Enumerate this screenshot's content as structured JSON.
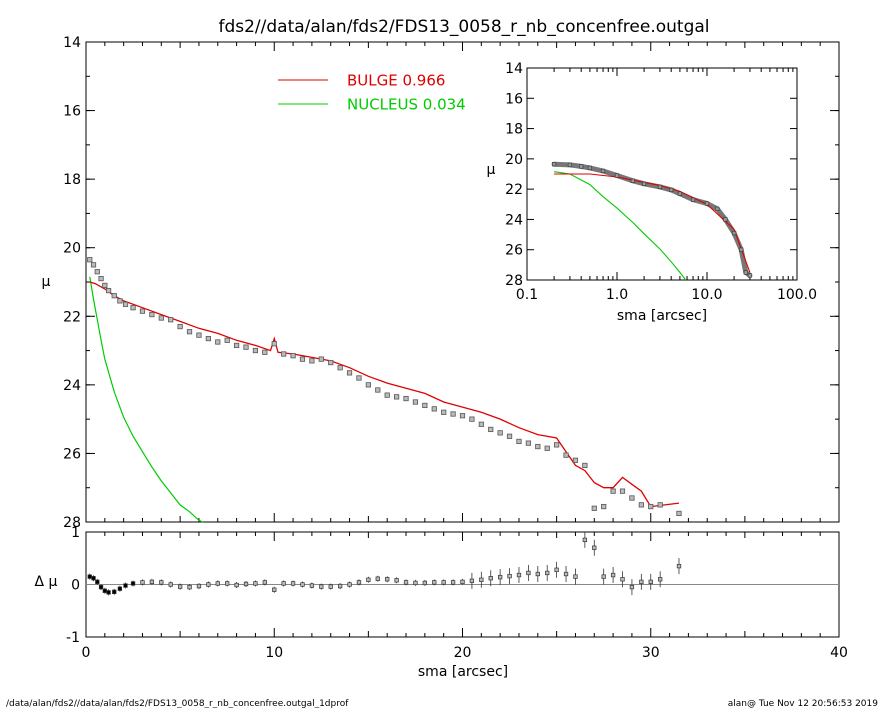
{
  "title": "fds2//data/alan/fds2/FDS13_0058_r_nb_concenfree.outgal",
  "footer_left": "/data/alan/fds2//data/alan/fds2/FDS13_0058_r_nb_concenfree.outgal_1dprof",
  "footer_right": "alan@  Tue Nov 12 20:56:53 2019",
  "colors": {
    "bulge": "#e00000",
    "nucleus": "#00cc00",
    "data": "#555555",
    "residual_zero": "#888888"
  },
  "chart_data": [
    {
      "type": "scatter",
      "panel": "main profile",
      "xlabel": "sma [arcsec]",
      "ylabel": "μ",
      "xlim": [
        0,
        40
      ],
      "ylim": [
        28,
        14
      ],
      "yticks": [
        14,
        16,
        18,
        20,
        22,
        24,
        26,
        28
      ],
      "xticks": [
        0,
        10,
        20,
        30,
        40
      ],
      "legend": [
        {
          "name": "BULGE",
          "value": "0.966",
          "color": "#e00000"
        },
        {
          "name": "NUCLEUS",
          "value": "0.034",
          "color": "#00cc00"
        }
      ],
      "observed": {
        "x": [
          0.2,
          0.4,
          0.6,
          0.8,
          1.0,
          1.2,
          1.5,
          1.8,
          2.1,
          2.5,
          3.0,
          3.5,
          4.0,
          4.5,
          5.0,
          5.5,
          6.0,
          6.5,
          7.0,
          7.5,
          8.0,
          8.5,
          9.0,
          9.5,
          10.0,
          10.5,
          11.0,
          11.5,
          12.0,
          12.5,
          13.0,
          13.5,
          14.0,
          14.5,
          15.0,
          15.5,
          16.0,
          16.5,
          17.0,
          17.5,
          18.0,
          18.5,
          19.0,
          19.5,
          20.0,
          20.5,
          21.0,
          21.5,
          22.0,
          22.5,
          23.0,
          23.5,
          24.0,
          24.5,
          25.0,
          25.5,
          26.0,
          26.5,
          27.0,
          27.5,
          28.0,
          28.5,
          29.0,
          29.5,
          30.0,
          30.5,
          31.5
        ],
        "y": [
          20.35,
          20.5,
          20.7,
          20.9,
          21.1,
          21.25,
          21.4,
          21.55,
          21.65,
          21.75,
          21.85,
          21.95,
          22.05,
          22.1,
          22.3,
          22.45,
          22.55,
          22.65,
          22.75,
          22.7,
          22.85,
          22.9,
          23.0,
          23.05,
          22.8,
          23.1,
          23.15,
          23.25,
          23.3,
          23.25,
          23.35,
          23.5,
          23.65,
          23.8,
          24.0,
          24.15,
          24.3,
          24.35,
          24.4,
          24.5,
          24.6,
          24.7,
          24.8,
          24.85,
          24.9,
          25.0,
          25.15,
          25.3,
          25.4,
          25.5,
          25.65,
          25.7,
          25.8,
          25.85,
          25.75,
          26.05,
          26.2,
          26.35,
          27.6,
          27.55,
          27.1,
          27.1,
          27.3,
          27.5,
          27.55,
          27.5,
          27.75
        ]
      },
      "bulge_model": {
        "x": [
          0.2,
          0.5,
          1.0,
          1.5,
          2.0,
          3.0,
          4.0,
          5.0,
          6.0,
          7.0,
          8.0,
          9.0,
          9.8,
          10.0,
          10.2,
          11.0,
          12.0,
          13.0,
          14.0,
          15.0,
          16.0,
          17.0,
          18.0,
          19.0,
          20.0,
          21.0,
          22.0,
          23.0,
          24.0,
          25.0,
          25.5,
          26.0,
          26.5,
          27.0,
          27.5,
          28.0,
          28.5,
          29.0,
          29.5,
          30.0,
          31.5
        ],
        "y": [
          21.0,
          21.05,
          21.2,
          21.4,
          21.55,
          21.75,
          21.95,
          22.15,
          22.35,
          22.5,
          22.7,
          22.85,
          23.0,
          22.65,
          23.05,
          23.1,
          23.2,
          23.3,
          23.5,
          23.75,
          23.95,
          24.1,
          24.25,
          24.5,
          24.65,
          24.8,
          25.0,
          25.25,
          25.45,
          25.55,
          25.95,
          26.35,
          26.5,
          26.85,
          27.0,
          27.0,
          26.7,
          26.9,
          27.1,
          27.55,
          27.45
        ]
      },
      "nucleus_model": {
        "x": [
          0.2,
          0.4,
          0.6,
          0.8,
          1.0,
          1.5,
          2.0,
          2.5,
          3.0,
          3.5,
          4.0,
          4.5,
          5.0,
          5.5,
          6.0,
          6.2
        ],
        "y": [
          20.85,
          21.5,
          22.1,
          22.7,
          23.25,
          24.2,
          24.95,
          25.5,
          25.95,
          26.4,
          26.8,
          27.15,
          27.5,
          27.7,
          27.95,
          28.0
        ]
      }
    },
    {
      "type": "scatter",
      "panel": "inset log profile",
      "xlabel": "sma [arcsec]",
      "ylabel": "μ",
      "xscale": "log",
      "xlim": [
        0.1,
        100.0
      ],
      "ylim": [
        28,
        14
      ],
      "xticks": [
        "0.1",
        "1.0",
        "10.0",
        "100.0"
      ],
      "yticks": [
        14,
        16,
        18,
        20,
        22,
        24,
        26,
        28
      ],
      "observed": {
        "x": [
          0.2,
          0.3,
          0.4,
          0.5,
          0.7,
          1.0,
          1.5,
          2.0,
          3.0,
          4.0,
          5.0,
          7.0,
          10.0,
          13.0,
          16.0,
          20.0,
          24.0,
          27.0,
          30.0
        ],
        "y": [
          20.35,
          20.4,
          20.5,
          20.6,
          20.8,
          21.1,
          21.45,
          21.65,
          21.85,
          22.05,
          22.3,
          22.7,
          22.95,
          23.3,
          24.0,
          24.9,
          26.0,
          27.5,
          27.7
        ]
      },
      "bulge_model": {
        "x": [
          0.2,
          0.5,
          1.0,
          2.0,
          3.0,
          5.0,
          10.0,
          20.0,
          30.0
        ],
        "y": [
          21.0,
          21.0,
          21.2,
          21.55,
          21.75,
          22.15,
          23.0,
          24.65,
          27.5
        ]
      },
      "nucleus_model": {
        "x": [
          0.2,
          0.3,
          0.5,
          0.7,
          1.0,
          1.5,
          2.0,
          3.0,
          4.0,
          5.0,
          5.8
        ],
        "y": [
          20.85,
          21.0,
          21.7,
          22.5,
          23.25,
          24.2,
          24.95,
          25.95,
          26.8,
          27.5,
          28.0
        ]
      }
    },
    {
      "type": "scatter",
      "panel": "residuals",
      "xlabel": "sma [arcsec]",
      "ylabel": "Δ μ",
      "xlim": [
        0,
        40
      ],
      "ylim": [
        -1,
        1
      ],
      "yticks": [
        -1,
        0,
        1
      ],
      "xticks": [
        0,
        10,
        20,
        30,
        40
      ],
      "x": [
        0.2,
        0.4,
        0.6,
        0.8,
        1.0,
        1.2,
        1.5,
        1.8,
        2.1,
        2.5,
        3.0,
        3.5,
        4.0,
        4.5,
        5.0,
        5.5,
        6.0,
        6.5,
        7.0,
        7.5,
        8.0,
        8.5,
        9.0,
        9.5,
        10.0,
        10.5,
        11.0,
        11.5,
        12.0,
        12.5,
        13.0,
        13.5,
        14.0,
        14.5,
        15.0,
        15.5,
        16.0,
        16.5,
        17.0,
        17.5,
        18.0,
        18.5,
        19.0,
        19.5,
        20.0,
        20.5,
        21.0,
        21.5,
        22.0,
        22.5,
        23.0,
        23.5,
        24.0,
        24.5,
        25.0,
        25.5,
        26.0,
        26.5,
        27.0,
        27.5,
        28.0,
        28.5,
        29.0,
        29.5,
        30.0,
        30.5,
        31.5
      ],
      "y": [
        0.15,
        0.12,
        0.05,
        -0.05,
        -0.12,
        -0.15,
        -0.14,
        -0.08,
        -0.02,
        0.02,
        0.04,
        0.05,
        0.04,
        0.0,
        -0.04,
        -0.05,
        -0.03,
        0.0,
        0.02,
        0.02,
        -0.01,
        0.01,
        0.02,
        0.04,
        -0.1,
        0.02,
        0.02,
        0.0,
        -0.02,
        -0.04,
        -0.04,
        -0.03,
        0.0,
        0.04,
        0.09,
        0.11,
        0.1,
        0.08,
        0.04,
        0.03,
        0.03,
        0.04,
        0.04,
        0.04,
        0.05,
        0.07,
        0.09,
        0.12,
        0.14,
        0.16,
        0.18,
        0.22,
        0.2,
        0.22,
        0.28,
        0.2,
        0.15,
        0.85,
        0.7,
        0.15,
        0.18,
        0.1,
        -0.05,
        0.05,
        0.05,
        0.1,
        0.35
      ]
    }
  ]
}
